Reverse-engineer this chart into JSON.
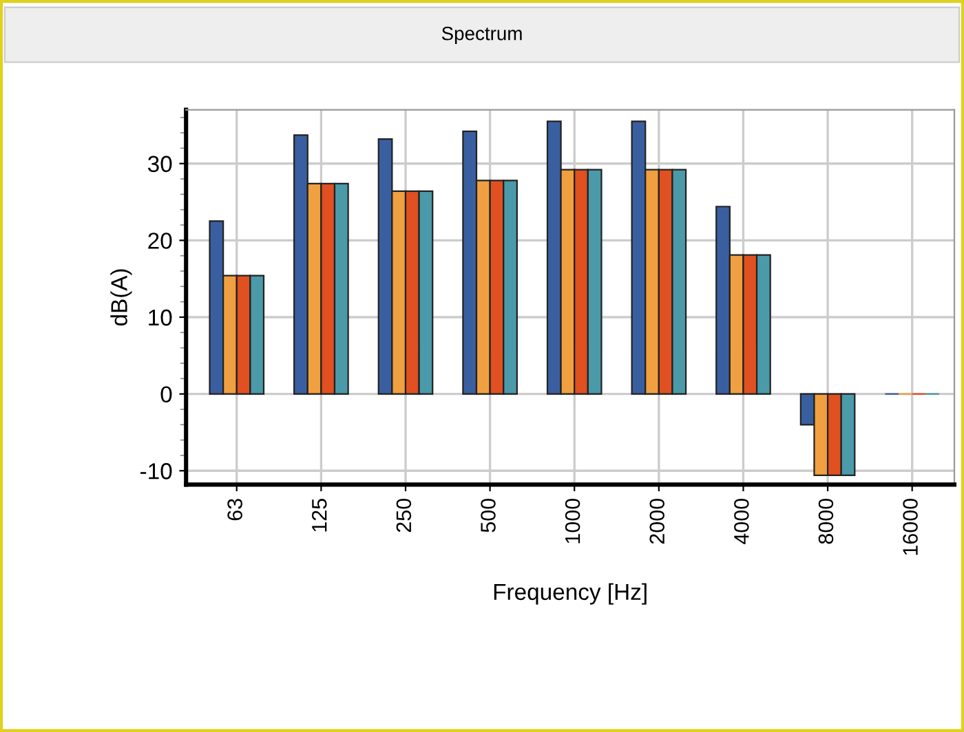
{
  "chart_data": {
    "type": "bar",
    "title": "Spectrum",
    "xlabel": "Frequency [Hz]",
    "ylabel": "dB(A)",
    "categories": [
      "63",
      "125",
      "250",
      "500",
      "1000",
      "2000",
      "4000",
      "8000",
      "16000"
    ],
    "series": [
      {
        "color": "#3a5fa0",
        "values": [
          22.5,
          33.7,
          33.2,
          34.2,
          35.5,
          35.5,
          24.4,
          -4.0,
          0
        ]
      },
      {
        "color": "#f0a040",
        "values": [
          15.4,
          27.4,
          26.4,
          27.8,
          29.2,
          29.2,
          18.1,
          -10.6,
          0
        ]
      },
      {
        "color": "#e05020",
        "values": [
          15.4,
          27.4,
          26.4,
          27.8,
          29.2,
          29.2,
          18.1,
          -10.6,
          0
        ]
      },
      {
        "color": "#4a9aaa",
        "values": [
          15.4,
          27.4,
          26.4,
          27.8,
          29.2,
          29.2,
          18.1,
          -10.6,
          0
        ]
      }
    ],
    "ylim": [
      -11.8,
      37
    ],
    "yticks": [
      -10,
      0,
      10,
      20,
      30
    ],
    "grid": true,
    "legend": false
  }
}
